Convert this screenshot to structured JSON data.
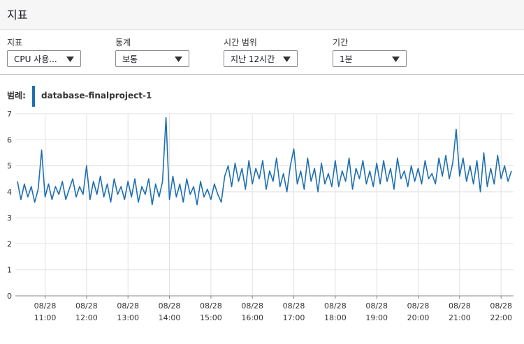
{
  "header": {
    "title": "지표"
  },
  "controls": [
    {
      "label": "지표",
      "value": "CPU 사용..."
    },
    {
      "label": "통계",
      "value": "보통"
    },
    {
      "label": "시간 범위",
      "value": "지난 12시간"
    },
    {
      "label": "기간",
      "value": "1분"
    }
  ],
  "chart_data": {
    "type": "line",
    "legend_title": "범례:",
    "x": [
      "08/28 10:20",
      "08/28 10:25",
      "08/28 10:30",
      "08/28 10:35",
      "08/28 10:40",
      "08/28 10:45",
      "08/28 10:50",
      "08/28 10:55",
      "08/28 11:00",
      "08/28 11:05",
      "08/28 11:10",
      "08/28 11:15",
      "08/28 11:20",
      "08/28 11:25",
      "08/28 11:30",
      "08/28 11:35",
      "08/28 11:40",
      "08/28 11:45",
      "08/28 11:50",
      "08/28 11:55",
      "08/28 12:00",
      "08/28 12:05",
      "08/28 12:10",
      "08/28 12:15",
      "08/28 12:20",
      "08/28 12:25",
      "08/28 12:30",
      "08/28 12:35",
      "08/28 12:40",
      "08/28 12:45",
      "08/28 12:50",
      "08/28 12:55",
      "08/28 13:00",
      "08/28 13:05",
      "08/28 13:10",
      "08/28 13:15",
      "08/28 13:20",
      "08/28 13:25",
      "08/28 13:30",
      "08/28 13:35",
      "08/28 13:40",
      "08/28 13:45",
      "08/28 13:50",
      "08/28 13:55",
      "08/28 14:00",
      "08/28 14:05",
      "08/28 14:10",
      "08/28 14:15",
      "08/28 14:20",
      "08/28 14:25",
      "08/28 14:30",
      "08/28 14:35",
      "08/28 14:40",
      "08/28 14:45",
      "08/28 14:50",
      "08/28 14:55",
      "08/28 15:00",
      "08/28 15:05",
      "08/28 15:10",
      "08/28 15:15",
      "08/28 15:20",
      "08/28 15:25",
      "08/28 15:30",
      "08/28 15:35",
      "08/28 15:40",
      "08/28 15:45",
      "08/28 15:50",
      "08/28 15:55",
      "08/28 16:00",
      "08/28 16:05",
      "08/28 16:10",
      "08/28 16:15",
      "08/28 16:20",
      "08/28 16:25",
      "08/28 16:30",
      "08/28 16:35",
      "08/28 16:40",
      "08/28 16:45",
      "08/28 16:50",
      "08/28 16:55",
      "08/28 17:00",
      "08/28 17:05",
      "08/28 17:10",
      "08/28 17:15",
      "08/28 17:20",
      "08/28 17:25",
      "08/28 17:30",
      "08/28 17:35",
      "08/28 17:40",
      "08/28 17:45",
      "08/28 17:50",
      "08/28 17:55",
      "08/28 18:00",
      "08/28 18:05",
      "08/28 18:10",
      "08/28 18:15",
      "08/28 18:20",
      "08/28 18:25",
      "08/28 18:30",
      "08/28 18:35",
      "08/28 18:40",
      "08/28 18:45",
      "08/28 18:50",
      "08/28 18:55",
      "08/28 19:00",
      "08/28 19:05",
      "08/28 19:10",
      "08/28 19:15",
      "08/28 19:20",
      "08/28 19:25",
      "08/28 19:30",
      "08/28 19:35",
      "08/28 19:40",
      "08/28 19:45",
      "08/28 19:50",
      "08/28 19:55",
      "08/28 20:00",
      "08/28 20:05",
      "08/28 20:10",
      "08/28 20:15",
      "08/28 20:20",
      "08/28 20:25",
      "08/28 20:30",
      "08/28 20:35",
      "08/28 20:40",
      "08/28 20:45",
      "08/28 20:50",
      "08/28 20:55",
      "08/28 21:00",
      "08/28 21:05",
      "08/28 21:10",
      "08/28 21:15",
      "08/28 21:20",
      "08/28 21:25",
      "08/28 21:30",
      "08/28 21:35",
      "08/28 21:40",
      "08/28 21:45",
      "08/28 21:50",
      "08/28 21:55",
      "08/28 22:00",
      "08/28 22:05",
      "08/28 22:10",
      "08/28 22:15"
    ],
    "series": [
      {
        "name": "database-finalproject-1",
        "color": "#1f6fb0",
        "values": [
          4.4,
          3.7,
          4.3,
          3.8,
          4.2,
          3.6,
          4.1,
          5.6,
          3.8,
          4.3,
          3.7,
          4.2,
          3.9,
          4.4,
          3.7,
          4.1,
          4.5,
          3.8,
          4.2,
          3.9,
          5.0,
          3.7,
          4.4,
          3.9,
          4.6,
          3.8,
          4.3,
          3.6,
          4.5,
          3.9,
          4.2,
          3.7,
          4.4,
          3.8,
          4.5,
          3.6,
          4.2,
          3.9,
          4.5,
          3.5,
          4.3,
          3.8,
          4.4,
          6.85,
          3.7,
          4.6,
          3.8,
          4.3,
          3.6,
          4.5,
          3.9,
          4.2,
          3.5,
          4.4,
          3.8,
          4.1,
          3.7,
          4.3,
          3.9,
          3.6,
          4.6,
          5.0,
          4.2,
          5.1,
          4.4,
          4.9,
          4.1,
          5.2,
          4.3,
          4.9,
          4.5,
          5.2,
          4.1,
          4.8,
          4.4,
          5.3,
          4.2,
          4.7,
          4.0,
          5.0,
          5.65,
          4.3,
          4.8,
          4.1,
          5.3,
          4.4,
          4.9,
          4.0,
          5.1,
          4.3,
          4.7,
          4.2,
          5.2,
          4.2,
          4.8,
          4.4,
          5.3,
          4.1,
          4.9,
          4.5,
          5.2,
          4.3,
          4.8,
          4.2,
          5.1,
          4.3,
          5.2,
          4.4,
          4.9,
          4.1,
          5.3,
          4.5,
          4.8,
          4.2,
          5.0,
          4.4,
          4.9,
          4.3,
          5.2,
          4.5,
          4.7,
          4.3,
          5.3,
          4.6,
          5.4,
          4.5,
          5.1,
          6.4,
          4.6,
          5.3,
          4.4,
          5.0,
          4.3,
          5.2,
          4.0,
          5.5,
          4.2,
          4.9,
          4.3,
          5.4,
          4.5,
          5.0,
          4.4,
          4.8
        ]
      }
    ],
    "xlim": [
      "08/28 10:17",
      "08/28 22:18"
    ],
    "xticks": [
      {
        "value": "08/28 11:00",
        "label": [
          "08/28",
          "11:00"
        ]
      },
      {
        "value": "08/28 12:00",
        "label": [
          "08/28",
          "12:00"
        ]
      },
      {
        "value": "08/28 13:00",
        "label": [
          "08/28",
          "13:00"
        ]
      },
      {
        "value": "08/28 14:00",
        "label": [
          "08/28",
          "14:00"
        ]
      },
      {
        "value": "08/28 15:00",
        "label": [
          "08/28",
          "15:00"
        ]
      },
      {
        "value": "08/28 16:00",
        "label": [
          "08/28",
          "16:00"
        ]
      },
      {
        "value": "08/28 17:00",
        "label": [
          "08/28",
          "17:00"
        ]
      },
      {
        "value": "08/28 18:00",
        "label": [
          "08/28",
          "18:00"
        ]
      },
      {
        "value": "08/28 19:00",
        "label": [
          "08/28",
          "19:00"
        ]
      },
      {
        "value": "08/28 20:00",
        "label": [
          "08/28",
          "20:00"
        ]
      },
      {
        "value": "08/28 21:00",
        "label": [
          "08/28",
          "21:00"
        ]
      },
      {
        "value": "08/28 22:00",
        "label": [
          "08/28",
          "22:00"
        ]
      }
    ],
    "ylim": [
      0,
      7
    ],
    "yticks": [
      0,
      1,
      2,
      3,
      4,
      5,
      6,
      7
    ],
    "grid": true
  }
}
